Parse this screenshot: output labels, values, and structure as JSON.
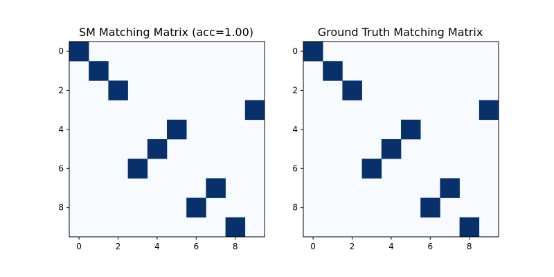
{
  "colors": {
    "on": "#08306b",
    "off": "#f7fbff",
    "axis": "#000000"
  },
  "chart_data": [
    {
      "type": "heatmap",
      "title": "SM Matching Matrix (acc=1.00)",
      "size": 10,
      "matches": [
        [
          0,
          0
        ],
        [
          1,
          1
        ],
        [
          2,
          2
        ],
        [
          3,
          9
        ],
        [
          4,
          5
        ],
        [
          5,
          4
        ],
        [
          6,
          3
        ],
        [
          7,
          7
        ],
        [
          8,
          6
        ],
        [
          9,
          8
        ]
      ],
      "xticks": [
        0,
        2,
        4,
        6,
        8
      ],
      "yticks": [
        0,
        2,
        4,
        6,
        8
      ],
      "xlim": [
        -0.5,
        9.5
      ],
      "ylim": [
        9.5,
        -0.5
      ]
    },
    {
      "type": "heatmap",
      "title": "Ground Truth Matching Matrix",
      "size": 10,
      "matches": [
        [
          0,
          0
        ],
        [
          1,
          1
        ],
        [
          2,
          2
        ],
        [
          3,
          9
        ],
        [
          4,
          5
        ],
        [
          5,
          4
        ],
        [
          6,
          3
        ],
        [
          7,
          7
        ],
        [
          8,
          6
        ],
        [
          9,
          8
        ]
      ],
      "xticks": [
        0,
        2,
        4,
        6,
        8
      ],
      "yticks": [
        0,
        2,
        4,
        6,
        8
      ],
      "xlim": [
        -0.5,
        9.5
      ],
      "ylim": [
        9.5,
        -0.5
      ]
    }
  ]
}
